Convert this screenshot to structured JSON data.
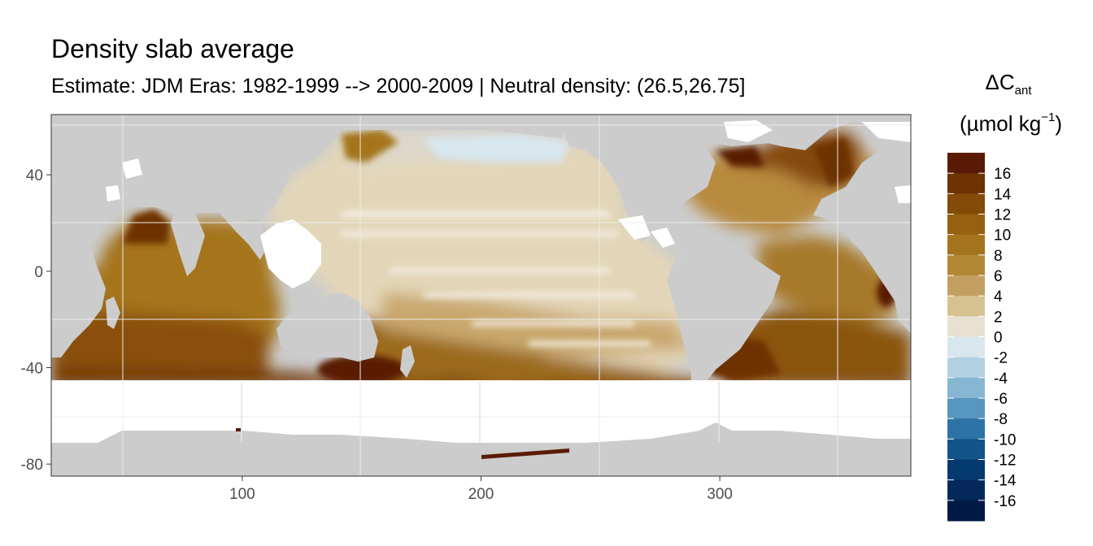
{
  "title": "Density slab average",
  "subtitle": "Estimate: JDM Eras: 1982-1999 --> 2000-2009 | Neutral density: (26.5,26.75]",
  "legend": {
    "symbol": "ΔC",
    "symbol_sub": "ant",
    "unit_main": "(µmol kg",
    "unit_sup": "−1",
    "unit_close": ")",
    "labels": [
      "16",
      "14",
      "12",
      "10",
      "8",
      "6",
      "4",
      "2",
      "0",
      "-2",
      "-4",
      "-6",
      "-8",
      "-10",
      "-12",
      "-14",
      "-16"
    ],
    "colors": [
      "#5a1a05",
      "#6e3204",
      "#844a08",
      "#956010",
      "#a5741e",
      "#b38835",
      "#c3a062",
      "#d6c191",
      "#e8e1d2",
      "#d8e6ee",
      "#b2d0e2",
      "#86b6d2",
      "#5796be",
      "#2d73a5",
      "#105488",
      "#053a70",
      "#02295a",
      "#011a46"
    ]
  },
  "map": {
    "x_ticks": [
      100,
      200,
      300
    ],
    "y_ticks": [
      40,
      0,
      -40,
      -80
    ],
    "xlim": [
      20,
      380
    ],
    "ylim": [
      -85,
      65
    ],
    "land_color": "#cccccc",
    "no_data_color": "#ffffff"
  }
}
